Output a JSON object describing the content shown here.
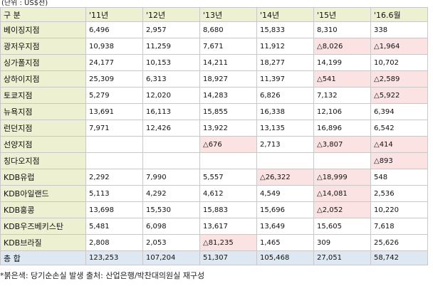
{
  "unit_label": "(단위 : US$천)",
  "header": {
    "label": "구 분",
    "years": [
      "'11년",
      "'12년",
      "'13년",
      "'14년",
      "'15년",
      "'16.6월"
    ]
  },
  "rows": [
    {
      "branch": "베이징지점",
      "values": [
        "6,496",
        "2,957",
        "8,680",
        "15,833",
        "8,310",
        "338"
      ],
      "loss": [
        false,
        false,
        false,
        false,
        false,
        false
      ]
    },
    {
      "branch": "광저우지점",
      "values": [
        "10,938",
        "11,259",
        "7,671",
        "11,912",
        "△8,026",
        "△1,964"
      ],
      "loss": [
        false,
        false,
        false,
        false,
        true,
        true
      ]
    },
    {
      "branch": "싱가폴지점",
      "values": [
        "24,177",
        "10,153",
        "14,211",
        "18,277",
        "14,199",
        "10,702"
      ],
      "loss": [
        false,
        false,
        false,
        false,
        false,
        false
      ]
    },
    {
      "branch": "상하이지점",
      "values": [
        "25,309",
        "6,313",
        "18,927",
        "11,397",
        "△541",
        "△2,589"
      ],
      "loss": [
        false,
        false,
        false,
        false,
        true,
        true
      ]
    },
    {
      "branch": "토쿄지점",
      "values": [
        "5,279",
        "12,020",
        "14,283",
        "6,826",
        "7,132",
        "△5,922"
      ],
      "loss": [
        false,
        false,
        false,
        false,
        false,
        true
      ]
    },
    {
      "branch": "뉴욕지점",
      "values": [
        "13,691",
        "16,113",
        "15,855",
        "16,338",
        "12,106",
        "6,394"
      ],
      "loss": [
        false,
        false,
        false,
        false,
        false,
        false
      ]
    },
    {
      "branch": "런던지점",
      "values": [
        "7,971",
        "12,426",
        "13,922",
        "13,135",
        "16,896",
        "6,542"
      ],
      "loss": [
        false,
        false,
        false,
        false,
        false,
        false
      ]
    },
    {
      "branch": "선양지점",
      "values": [
        "",
        "",
        "△676",
        "2,713",
        "△3,807",
        "△414"
      ],
      "loss": [
        false,
        false,
        true,
        false,
        true,
        true
      ]
    },
    {
      "branch": "칭다오지점",
      "values": [
        "",
        "",
        "",
        "",
        "",
        "△893"
      ],
      "loss": [
        false,
        false,
        false,
        false,
        false,
        true
      ]
    },
    {
      "branch": "KDB유럽",
      "values": [
        "2,292",
        "7,990",
        "5,557",
        "△26,322",
        "△18,999",
        "548"
      ],
      "loss": [
        false,
        false,
        false,
        true,
        true,
        false
      ]
    },
    {
      "branch": "KDB아일랜드",
      "values": [
        "5,113",
        "4,292",
        "4,612",
        "4,549",
        "△14,081",
        "2,536"
      ],
      "loss": [
        false,
        false,
        false,
        false,
        true,
        false
      ]
    },
    {
      "branch": "KDB홍콩",
      "values": [
        "13,698",
        "15,530",
        "15,883",
        "15,696",
        "△2,052",
        "10,220"
      ],
      "loss": [
        false,
        false,
        false,
        false,
        true,
        false
      ]
    },
    {
      "branch": "KDB우즈베키스탄",
      "values": [
        "5,481",
        "6,098",
        "13,617",
        "13,649",
        "15,605",
        "7,618"
      ],
      "loss": [
        false,
        false,
        false,
        false,
        false,
        false
      ]
    },
    {
      "branch": "KDB브라질",
      "values": [
        "2,808",
        "2,053",
        "△81,235",
        "1,465",
        "309",
        "25,626"
      ],
      "loss": [
        false,
        false,
        true,
        false,
        false,
        false
      ]
    }
  ],
  "total": {
    "label": "총 합",
    "values": [
      "123,253",
      "107,204",
      "51,307",
      "105,468",
      "27,051",
      "58,742"
    ]
  },
  "note": "*붉은색: 당기순손실 발생 출처: 산업은행/박찬대의원실 재구성",
  "colors": {
    "header_bg": "#eef0d2",
    "loss_bg": "#fbe3e4",
    "total_bg": "#dde8f2",
    "border": "#c8c8c8"
  }
}
